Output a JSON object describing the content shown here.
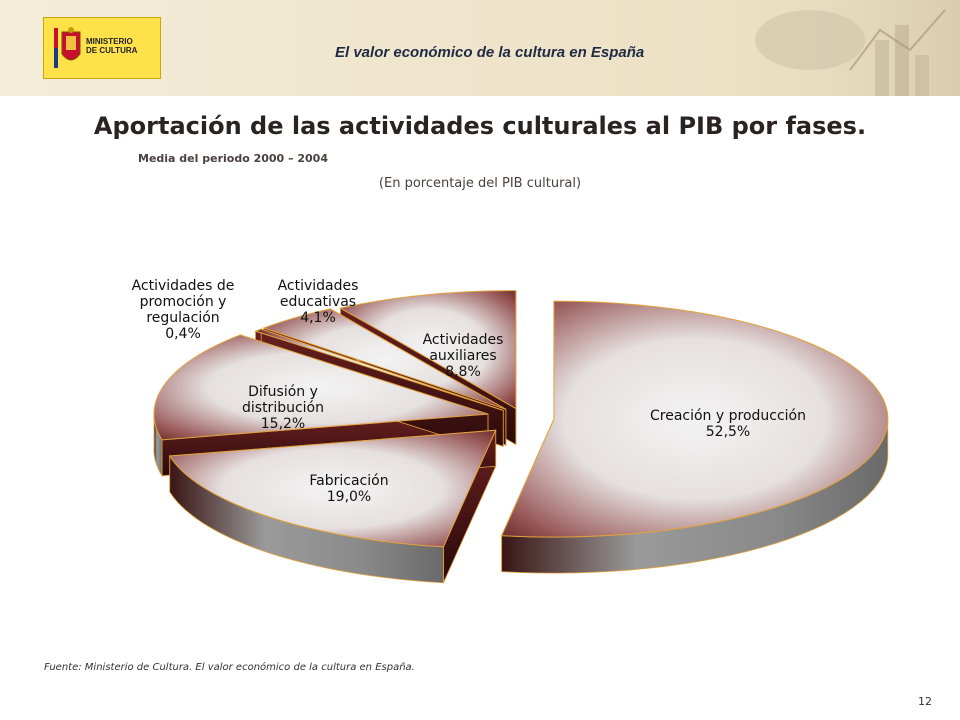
{
  "header": {
    "logo_text_line1": "MINISTERIO",
    "logo_text_line2": "DE CULTURA",
    "title": "El valor económico de la cultura  en España"
  },
  "colors": {
    "header_bg": "#eee3c8",
    "slice_dark": "#5a1a1a",
    "slice_light": "#f1f1f1",
    "slice_edge": "#e2a23a",
    "side_gray": "#8a8a8a"
  },
  "chart_data": {
    "type": "pie",
    "title": "Aportación de las actividades culturales al PIB por fases.",
    "subtitle": "Media del periodo 2000 – 2004",
    "unit_note": "(En porcentaje del PIB cultural)",
    "three_d": true,
    "exploded": true,
    "slices": [
      {
        "name": "Creación y producción",
        "value": 52.5,
        "label_lines": [
          "Creación y producción",
          "52,5%"
        ]
      },
      {
        "name": "Fabricación",
        "value": 19.0,
        "label_lines": [
          "Fabricación",
          "19,0%"
        ]
      },
      {
        "name": "Difusión y distribución",
        "value": 15.2,
        "label_lines": [
          "Difusión y",
          "distribución",
          "15,2%"
        ]
      },
      {
        "name": "Actividades de promoción y regulación",
        "value": 0.4,
        "label_lines": [
          "Actividades de",
          "promoción y",
          "regulación",
          "0,4%"
        ]
      },
      {
        "name": "Actividades educativas",
        "value": 4.1,
        "label_lines": [
          "Actividades",
          "educativas",
          "4,1%"
        ]
      },
      {
        "name": "Actividades auxiliares",
        "value": 8.8,
        "label_lines": [
          "Actividades",
          "auxiliares",
          "8,8%"
        ]
      }
    ]
  },
  "footer": {
    "source": "Fuente: Ministerio de Cultura. El valor económico de la cultura en España.",
    "page_number": "12"
  }
}
